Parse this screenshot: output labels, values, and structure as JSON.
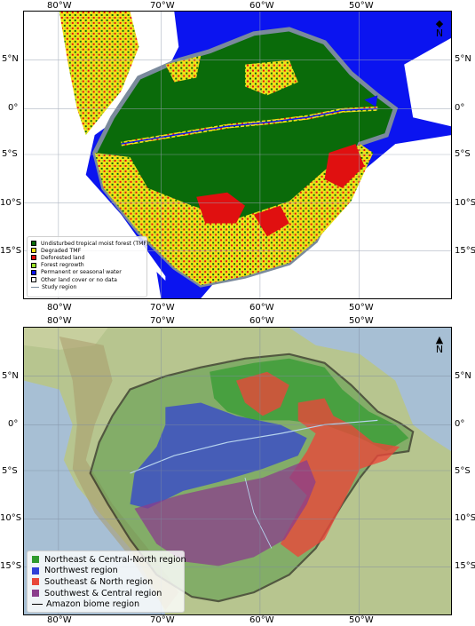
{
  "colors": {
    "tmf": "#0a6b0a",
    "degraded": "#f2e21a",
    "deforested": "#e01010",
    "regrowth": "#9be32a",
    "water": "#0b14f0",
    "other": "#ffffff",
    "study": "#7a8a9c",
    "ne": "#2f9a2f",
    "nw": "#2f3fd6",
    "se": "#e8473a",
    "sw": "#8a3d8c",
    "biome": "#000000",
    "ocean": "#a7bfd4",
    "land": "#b7c58f"
  },
  "axes": {
    "lon_labels": [
      "80°W",
      "70°W",
      "60°W",
      "50°W"
    ],
    "lat_labels": [
      "5°N",
      "0°",
      "5°S",
      "10°S",
      "15°S"
    ]
  },
  "map_top": {
    "north_arrow": {
      "symbol": "◆",
      "letter": "N"
    },
    "legend": [
      {
        "label": "Undisturbed tropical moist forest (TMF)",
        "color_key": "tmf",
        "kind": "box"
      },
      {
        "label": "Degraded TMF",
        "color_key": "degraded",
        "kind": "box"
      },
      {
        "label": "Deforested land",
        "color_key": "deforested",
        "kind": "box"
      },
      {
        "label": "Forest regrowth",
        "color_key": "regrowth",
        "kind": "box"
      },
      {
        "label": "Permanent or seasonal water",
        "color_key": "water",
        "kind": "box"
      },
      {
        "label": "Other land cover or no data",
        "color_key": "other",
        "kind": "box"
      },
      {
        "label": "Study region",
        "color_key": "study",
        "kind": "line"
      }
    ]
  },
  "map_bottom": {
    "north_arrow": {
      "symbol": "▲",
      "letter": "N"
    },
    "legend": [
      {
        "label": "Northeast & Central-North region",
        "color_key": "ne",
        "kind": "box"
      },
      {
        "label": "Northwest region",
        "color_key": "nw",
        "kind": "box"
      },
      {
        "label": "Southeast & North region",
        "color_key": "se",
        "kind": "box"
      },
      {
        "label": "Southwest & Central region",
        "color_key": "sw",
        "kind": "box"
      },
      {
        "label": "Amazon biome region",
        "color_key": "biome",
        "kind": "line"
      }
    ]
  }
}
